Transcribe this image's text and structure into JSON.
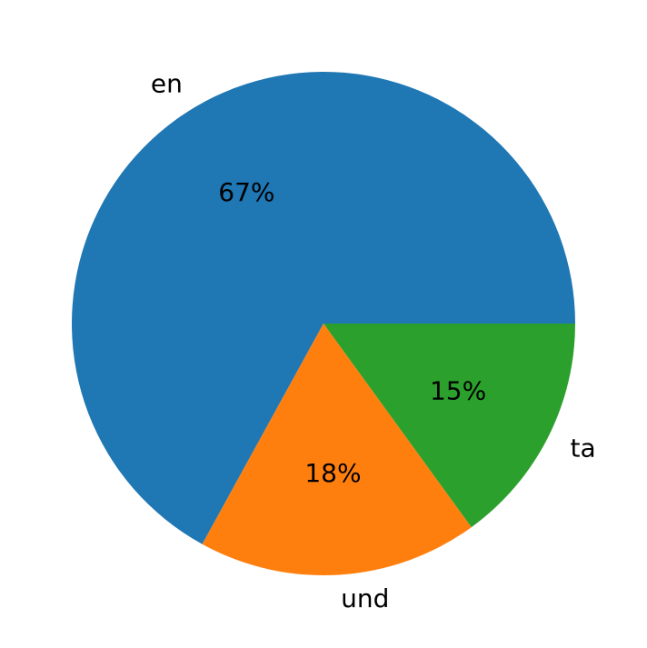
{
  "chart_data": {
    "type": "pie",
    "categories": [
      "en",
      "und",
      "ta"
    ],
    "values": [
      67,
      18,
      15
    ],
    "value_labels": [
      "67%",
      "18%",
      "15%"
    ],
    "colors": [
      "#1f77b4",
      "#ff7f0e",
      "#2ca02c"
    ]
  }
}
